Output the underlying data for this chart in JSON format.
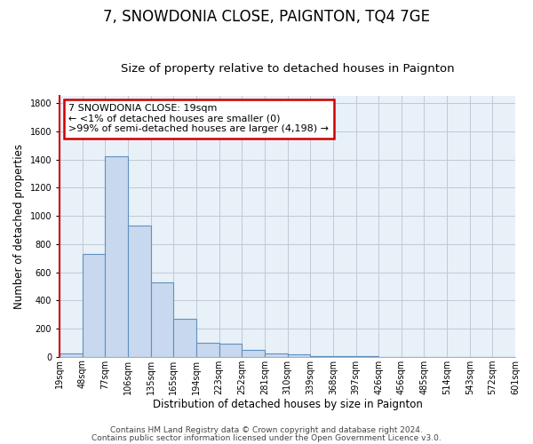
{
  "title": "7, SNOWDONIA CLOSE, PAIGNTON, TQ4 7GE",
  "subtitle": "Size of property relative to detached houses in Paignton",
  "xlabel": "Distribution of detached houses by size in Paignton",
  "ylabel": "Number of detached properties",
  "bar_values": [
    20,
    730,
    1420,
    930,
    530,
    270,
    100,
    90,
    50,
    25,
    15,
    5,
    3,
    2,
    1,
    1,
    1,
    1,
    1,
    1
  ],
  "bar_labels": [
    "19sqm",
    "48sqm",
    "77sqm",
    "106sqm",
    "135sqm",
    "165sqm",
    "194sqm",
    "223sqm",
    "252sqm",
    "281sqm",
    "310sqm",
    "339sqm",
    "368sqm",
    "397sqm",
    "426sqm",
    "456sqm",
    "485sqm",
    "514sqm",
    "543sqm",
    "572sqm",
    "601sqm"
  ],
  "bar_fill_color": "#c8d8ee",
  "bar_edge_color": "#6090c0",
  "annotation_line1": "7 SNOWDONIA CLOSE: 19sqm",
  "annotation_line2": "← <1% of detached houses are smaller (0)",
  "annotation_line3": ">99% of semi-detached houses are larger (4,198) →",
  "annotation_box_color": "#ffffff",
  "annotation_box_edge_color": "#cc0000",
  "ylim": [
    0,
    1850
  ],
  "yticks": [
    0,
    200,
    400,
    600,
    800,
    1000,
    1200,
    1400,
    1600,
    1800
  ],
  "footer_line1": "Contains HM Land Registry data © Crown copyright and database right 2024.",
  "footer_line2": "Contains public sector information licensed under the Open Government Licence v3.0.",
  "bg_color": "#ffffff",
  "plot_bg_color": "#e8f0f8",
  "grid_color": "#c0c8d8",
  "title_fontsize": 12,
  "subtitle_fontsize": 9.5,
  "axis_label_fontsize": 8.5,
  "tick_fontsize": 7,
  "annotation_fontsize": 8,
  "footer_fontsize": 6.5
}
